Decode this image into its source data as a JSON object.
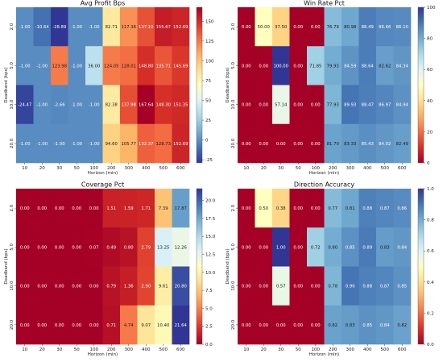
{
  "chart_data": [
    {
      "type": "heatmap",
      "title": "Avg Profit Bps",
      "xlabel": "Horizon (min)",
      "ylabel": "Deadband (bps)",
      "x": [
        "10",
        "20",
        "30",
        "50",
        "100",
        "200",
        "300",
        "400",
        "500",
        "600"
      ],
      "y": [
        "2.0",
        "5.0",
        "10.0",
        "20.0"
      ],
      "values": [
        [
          -1.0,
          -10.64,
          -28.89,
          -1.0,
          -1.0,
          82.71,
          117.36,
          137.1,
          155.67,
          152.69
        ],
        [
          -1.0,
          -1.0,
          123.98,
          -1.0,
          36.0,
          124.05,
          128.01,
          148.8,
          135.71,
          145.69
        ],
        [
          -24.47,
          -1.0,
          -2.66,
          -1.0,
          -1.0,
          82.38,
          137.98,
          167.64,
          148.3,
          151.35
        ],
        [
          -1.0,
          -1.0,
          -1.0,
          -1.0,
          -1.0,
          94.6,
          105.77,
          132.37,
          128.73,
          152.69
        ]
      ],
      "labels": [
        [
          "-1.00",
          "-10.64",
          "-28.89",
          "-1.00",
          "-1.00",
          "82.71",
          "117.36",
          "137.10",
          "155.67",
          "152.69"
        ],
        [
          "-1.00",
          "-1.00",
          "123.98",
          "-1.00",
          "36.00",
          "124.05",
          "128.01",
          "148.80",
          "135.71",
          "145.69"
        ],
        [
          "-24.47",
          "-1.00",
          "-2.66",
          "-1.00",
          "-1.00",
          "82.38",
          "137.98",
          "167.64",
          "148.30",
          "151.35"
        ],
        [
          "-1.00",
          "-1.00",
          "-1.00",
          "-1.00",
          "-1.00",
          "94.60",
          "105.77",
          "132.37",
          "128.73",
          "152.69"
        ]
      ],
      "colorbar_range": [
        -28.89,
        167.64
      ],
      "colorbar_ticks": [
        -25,
        0,
        25,
        50,
        75,
        100,
        125,
        150
      ],
      "colorbar_labels": [
        "-25",
        "0",
        "25",
        "50",
        "75",
        "100",
        "125",
        "150"
      ],
      "colormap": "RdYlBu (reversed)"
    },
    {
      "type": "heatmap",
      "title": "Win Rate Pct",
      "xlabel": "Horizon (min)",
      "ylabel": "Deadband (bps)",
      "x": [
        "10",
        "20",
        "30",
        "50",
        "100",
        "200",
        "300",
        "400",
        "500",
        "600"
      ],
      "y": [
        "2.0",
        "5.0",
        "10.0",
        "20.0"
      ],
      "values": [
        [
          0.0,
          50.0,
          37.5,
          0.0,
          0.0,
          76.79,
          80.98,
          88.49,
          86.66,
          86.1
        ],
        [
          0.0,
          0.0,
          100.0,
          0.0,
          71.85,
          79.93,
          84.59,
          88.64,
          82.62,
          84.34
        ],
        [
          0.0,
          0.0,
          57.14,
          0.0,
          0.0,
          77.93,
          89.93,
          88.47,
          86.97,
          84.94
        ],
        [
          0.0,
          0.0,
          0.0,
          0.0,
          0.0,
          81.7,
          83.33,
          85.43,
          84.02,
          82.49
        ]
      ],
      "labels": [
        [
          "0.00",
          "50.00",
          "37.50",
          "0.00",
          "0.00",
          "76.79",
          "80.98",
          "88.49",
          "86.66",
          "86.10"
        ],
        [
          "0.00",
          "0.00",
          "100.00",
          "0.00",
          "71.85",
          "79.93",
          "84.59",
          "88.64",
          "82.62",
          "84.34"
        ],
        [
          "0.00",
          "0.00",
          "57.14",
          "0.00",
          "0.00",
          "77.93",
          "89.93",
          "88.47",
          "86.97",
          "84.94"
        ],
        [
          "0.00",
          "0.00",
          "0.00",
          "0.00",
          "0.00",
          "81.70",
          "83.33",
          "85.43",
          "84.02",
          "82.49"
        ]
      ],
      "colorbar_range": [
        0,
        100
      ],
      "colorbar_ticks": [
        0,
        20,
        40,
        60,
        80,
        100
      ],
      "colorbar_labels": [
        "0",
        "20",
        "40",
        "60",
        "80",
        "100"
      ],
      "colormap": "RdYlBu"
    },
    {
      "type": "heatmap",
      "title": "Coverage Pct",
      "xlabel": "Horizon (min)",
      "ylabel": "Deadband (bps)",
      "x": [
        "10",
        "20",
        "30",
        "50",
        "100",
        "200",
        "300",
        "400",
        "500",
        "600"
      ],
      "y": [
        "2.0",
        "5.0",
        "10.0",
        "20.0"
      ],
      "values": [
        [
          0.0,
          0.0,
          0.0,
          0.0,
          0.0,
          1.51,
          1.59,
          1.71,
          7.39,
          17.87
        ],
        [
          0.0,
          0.0,
          0.0,
          0.0,
          0.07,
          0.49,
          0.8,
          2.79,
          13.25,
          12.26
        ],
        [
          0.0,
          0.0,
          0.0,
          0.0,
          0.0,
          0.79,
          1.36,
          2.9,
          9.61,
          20.8
        ],
        [
          0.0,
          0.0,
          0.0,
          0.0,
          0.0,
          0.71,
          4.74,
          9.07,
          10.4,
          21.64
        ]
      ],
      "labels": [
        [
          "0.00",
          "0.00",
          "0.00",
          "0.00",
          "0.00",
          "1.51",
          "1.59",
          "1.71",
          "7.39",
          "17.87"
        ],
        [
          "0.00",
          "0.00",
          "0.00",
          "0.00",
          "0.07",
          "0.49",
          "0.80",
          "2.79",
          "13.25",
          "12.26"
        ],
        [
          "0.00",
          "0.00",
          "0.00",
          "0.00",
          "0.00",
          "0.79",
          "1.36",
          "2.90",
          "9.61",
          "20.80"
        ],
        [
          "0.00",
          "0.00",
          "0.00",
          "0.00",
          "0.00",
          "0.71",
          "4.74",
          "9.07",
          "10.40",
          "21.64"
        ]
      ],
      "colorbar_range": [
        0,
        21.64
      ],
      "colorbar_ticks": [
        0,
        2.5,
        5,
        7.5,
        10,
        12.5,
        15,
        17.5,
        20
      ],
      "colorbar_labels": [
        "0.0",
        "2.5",
        "5.0",
        "7.5",
        "10.0",
        "12.5",
        "15.0",
        "17.5",
        "20.0"
      ],
      "colormap": "RdYlBu"
    },
    {
      "type": "heatmap",
      "title": "Direction Accuracy",
      "xlabel": "Horizon (min)",
      "ylabel": "Deadband (bps)",
      "x": [
        "10",
        "20",
        "30",
        "50",
        "100",
        "200",
        "300",
        "400",
        "500",
        "600"
      ],
      "y": [
        "2.0",
        "5.0",
        "10.0",
        "20.0"
      ],
      "values": [
        [
          0.0,
          0.5,
          0.38,
          0.0,
          0.0,
          0.77,
          0.81,
          0.88,
          0.87,
          0.86
        ],
        [
          0.0,
          0.0,
          1.0,
          0.0,
          0.72,
          0.8,
          0.85,
          0.89,
          0.83,
          0.84
        ],
        [
          0.0,
          0.0,
          0.57,
          0.0,
          0.0,
          0.78,
          0.9,
          0.88,
          0.87,
          0.85
        ],
        [
          0.0,
          0.0,
          0.0,
          0.0,
          0.0,
          0.82,
          0.83,
          0.85,
          0.84,
          0.82
        ]
      ],
      "labels": [
        [
          "0.00",
          "0.50",
          "0.38",
          "0.00",
          "0.00",
          "0.77",
          "0.81",
          "0.88",
          "0.87",
          "0.86"
        ],
        [
          "0.00",
          "0.00",
          "1.00",
          "0.00",
          "0.72",
          "0.80",
          "0.85",
          "0.89",
          "0.83",
          "0.84"
        ],
        [
          "0.00",
          "0.00",
          "0.57",
          "0.00",
          "0.00",
          "0.78",
          "0.90",
          "0.88",
          "0.87",
          "0.85"
        ],
        [
          "0.00",
          "0.00",
          "0.00",
          "0.00",
          "0.00",
          "0.82",
          "0.83",
          "0.85",
          "0.84",
          "0.82"
        ]
      ],
      "colorbar_range": [
        0,
        1
      ],
      "colorbar_ticks": [
        0,
        0.2,
        0.4,
        0.6,
        0.8,
        1.0
      ],
      "colorbar_labels": [
        "0.0",
        "0.2",
        "0.4",
        "0.6",
        "0.8",
        "1.0"
      ],
      "colormap": "RdYlBu"
    }
  ]
}
